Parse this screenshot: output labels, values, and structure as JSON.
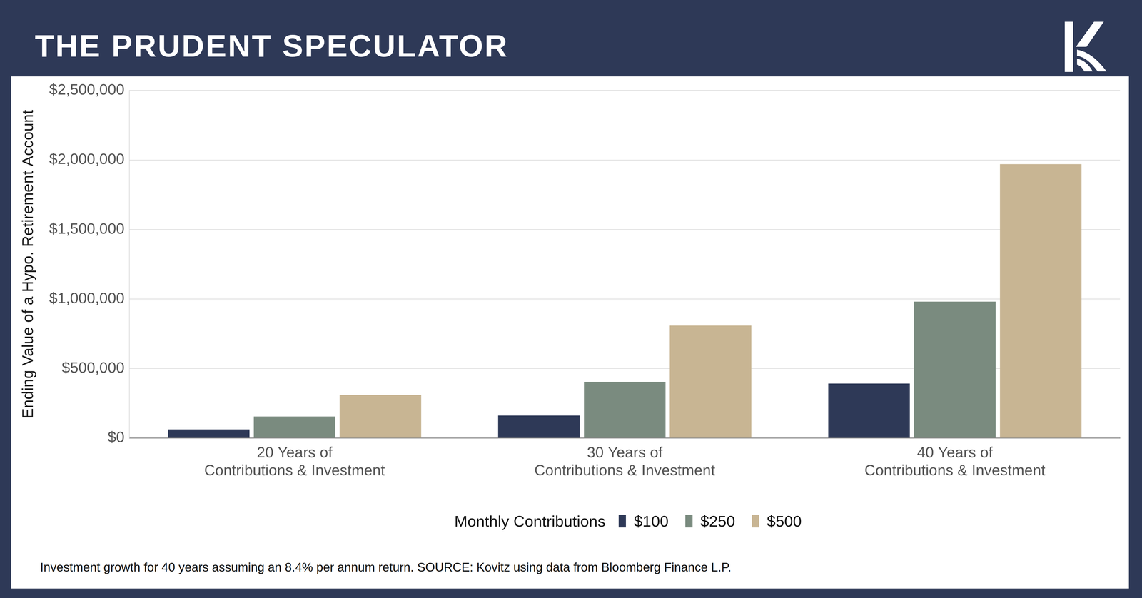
{
  "chart_data": {
    "type": "bar",
    "title": "THE PRUDENT SPECULATOR",
    "y_label": "Ending Value of a Hypo. Retirement Account",
    "categories": [
      [
        "20 Years of",
        "Contributions & Investment"
      ],
      [
        "30 Years of",
        "Contributions & Investment"
      ],
      [
        "40 Years of",
        "Contributions & Investment"
      ]
    ],
    "series": [
      {
        "name": "$100",
        "color": "#2e3957",
        "values": [
          62000,
          162000,
          392000
        ]
      },
      {
        "name": "$250",
        "color": "#7a8b7f",
        "values": [
          155000,
          404000,
          981000
        ]
      },
      {
        "name": "$500",
        "color": "#c8b593",
        "values": [
          310000,
          809000,
          1970000
        ]
      }
    ],
    "ylim": [
      0,
      2500000
    ],
    "yticks": [
      {
        "value": 0,
        "label": "$0"
      },
      {
        "value": 500000,
        "label": "$500,000"
      },
      {
        "value": 1000000,
        "label": "$1,000,000"
      },
      {
        "value": 1500000,
        "label": "$1,500,000"
      },
      {
        "value": 2000000,
        "label": "$2,000,000"
      },
      {
        "value": 2500000,
        "label": "$2,500,000"
      }
    ],
    "grid": true,
    "legend": "bottom",
    "legend_title": "Monthly Contributions",
    "footnote": "Investment growth for 40 years assuming an 8.4% per annum return. SOURCE: Kovitz using data from Bloomberg Finance L.P."
  }
}
